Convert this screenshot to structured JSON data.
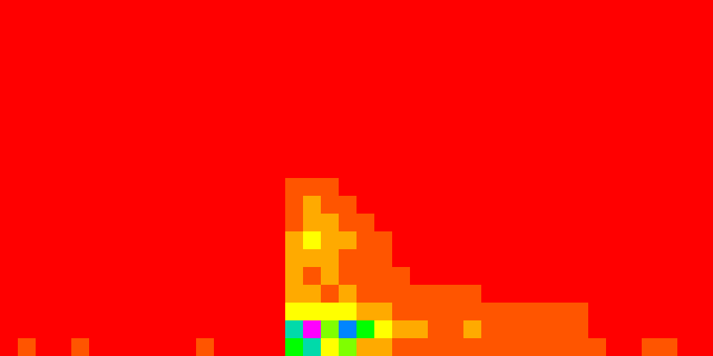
{
  "chart_data": {
    "type": "heatmap",
    "tick_labels": false,
    "grid": false,
    "xlim": [
      0,
      40
    ],
    "ylim": [
      0,
      20
    ],
    "color_range": [
      0,
      10
    ],
    "cells": [
      [
        0,
        0,
        0,
        0,
        0,
        0,
        0,
        0,
        0,
        0,
        0,
        0,
        0,
        0,
        0,
        0,
        0,
        0,
        0,
        0,
        0,
        0,
        0,
        0,
        0,
        0,
        0,
        0,
        0,
        0,
        0,
        0,
        0,
        0,
        0,
        0,
        0,
        0,
        0,
        0
      ],
      [
        0,
        0,
        0,
        0,
        0,
        0,
        0,
        0,
        0,
        0,
        0,
        0,
        0,
        0,
        0,
        0,
        0,
        0,
        0,
        0,
        0,
        0,
        0,
        0,
        0,
        0,
        0,
        0,
        0,
        0,
        0,
        0,
        0,
        0,
        0,
        0,
        0,
        0,
        0,
        0
      ],
      [
        0,
        0,
        0,
        0,
        0,
        0,
        0,
        0,
        0,
        0,
        0,
        0,
        0,
        0,
        0,
        0,
        0,
        0,
        0,
        0,
        0,
        0,
        0,
        0,
        0,
        0,
        0,
        0,
        0,
        0,
        0,
        0,
        0,
        0,
        0,
        0,
        0,
        0,
        0,
        0
      ],
      [
        0,
        0,
        0,
        0,
        0,
        0,
        0,
        0,
        0,
        0,
        0,
        0,
        0,
        0,
        0,
        0,
        0,
        0,
        0,
        0,
        0,
        0,
        0,
        0,
        0,
        0,
        0,
        0,
        0,
        0,
        0,
        0,
        0,
        0,
        0,
        0,
        0,
        0,
        0,
        0
      ],
      [
        0,
        0,
        0,
        0,
        0,
        0,
        0,
        0,
        0,
        0,
        0,
        0,
        0,
        0,
        0,
        0,
        0,
        0,
        0,
        0,
        0,
        0,
        0,
        0,
        0,
        0,
        0,
        0,
        0,
        0,
        0,
        0,
        0,
        0,
        0,
        0,
        0,
        0,
        0,
        0
      ],
      [
        0,
        0,
        0,
        0,
        0,
        0,
        0,
        0,
        0,
        0,
        0,
        0,
        0,
        0,
        0,
        0,
        0,
        0,
        0,
        0,
        0,
        0,
        0,
        0,
        0,
        0,
        0,
        0,
        0,
        0,
        0,
        0,
        0,
        0,
        0,
        0,
        0,
        0,
        0,
        0
      ],
      [
        0,
        0,
        0,
        0,
        0,
        0,
        0,
        0,
        0,
        0,
        0,
        0,
        0,
        0,
        0,
        0,
        0,
        0,
        0,
        0,
        0,
        0,
        0,
        0,
        0,
        0,
        0,
        0,
        0,
        0,
        0,
        0,
        0,
        0,
        0,
        0,
        0,
        0,
        0,
        0
      ],
      [
        0,
        0,
        0,
        0,
        0,
        0,
        0,
        0,
        0,
        0,
        0,
        0,
        0,
        0,
        0,
        0,
        0,
        0,
        0,
        0,
        0,
        0,
        0,
        0,
        0,
        0,
        0,
        0,
        0,
        0,
        0,
        0,
        0,
        0,
        0,
        0,
        0,
        0,
        0,
        0
      ],
      [
        0,
        0,
        0,
        0,
        0,
        0,
        0,
        0,
        0,
        0,
        0,
        0,
        0,
        0,
        0,
        0,
        0,
        0,
        0,
        0,
        0,
        0,
        0,
        0,
        0,
        0,
        0,
        0,
        0,
        0,
        0,
        0,
        0,
        0,
        0,
        0,
        0,
        0,
        0,
        0
      ],
      [
        0,
        0,
        0,
        0,
        0,
        0,
        0,
        0,
        0,
        0,
        0,
        0,
        0,
        0,
        0,
        0,
        0,
        0,
        0,
        0,
        0,
        0,
        0,
        0,
        0,
        0,
        0,
        0,
        0,
        0,
        0,
        0,
        0,
        0,
        0,
        0,
        0,
        0,
        0,
        0
      ],
      [
        0,
        0,
        0,
        0,
        0,
        0,
        0,
        0,
        0,
        0,
        0,
        0,
        0,
        0,
        0,
        0,
        1,
        1,
        1,
        0,
        0,
        0,
        0,
        0,
        0,
        0,
        0,
        0,
        0,
        0,
        0,
        0,
        0,
        0,
        0,
        0,
        0,
        0,
        0,
        0
      ],
      [
        0,
        0,
        0,
        0,
        0,
        0,
        0,
        0,
        0,
        0,
        0,
        0,
        0,
        0,
        0,
        0,
        1,
        2,
        1,
        1,
        0,
        0,
        0,
        0,
        0,
        0,
        0,
        0,
        0,
        0,
        0,
        0,
        0,
        0,
        0,
        0,
        0,
        0,
        0,
        0
      ],
      [
        0,
        0,
        0,
        0,
        0,
        0,
        0,
        0,
        0,
        0,
        0,
        0,
        0,
        0,
        0,
        0,
        1,
        2,
        2,
        1,
        1,
        0,
        0,
        0,
        0,
        0,
        0,
        0,
        0,
        0,
        0,
        0,
        0,
        0,
        0,
        0,
        0,
        0,
        0,
        0
      ],
      [
        0,
        0,
        0,
        0,
        0,
        0,
        0,
        0,
        0,
        0,
        0,
        0,
        0,
        0,
        0,
        0,
        2,
        3,
        2,
        2,
        1,
        1,
        0,
        0,
        0,
        0,
        0,
        0,
        0,
        0,
        0,
        0,
        0,
        0,
        0,
        0,
        0,
        0,
        0,
        0
      ],
      [
        0,
        0,
        0,
        0,
        0,
        0,
        0,
        0,
        0,
        0,
        0,
        0,
        0,
        0,
        0,
        0,
        2,
        2,
        2,
        1,
        1,
        1,
        0,
        0,
        0,
        0,
        0,
        0,
        0,
        0,
        0,
        0,
        0,
        0,
        0,
        0,
        0,
        0,
        0,
        0
      ],
      [
        0,
        0,
        0,
        0,
        0,
        0,
        0,
        0,
        0,
        0,
        0,
        0,
        0,
        0,
        0,
        0,
        2,
        1,
        2,
        1,
        1,
        1,
        1,
        0,
        0,
        0,
        0,
        0,
        0,
        0,
        0,
        0,
        0,
        0,
        0,
        0,
        0,
        0,
        0,
        0
      ],
      [
        0,
        0,
        0,
        0,
        0,
        0,
        0,
        0,
        0,
        0,
        0,
        0,
        0,
        0,
        0,
        0,
        2,
        2,
        1,
        2,
        1,
        1,
        1,
        1,
        1,
        1,
        1,
        0,
        0,
        0,
        0,
        0,
        0,
        0,
        0,
        0,
        0,
        0,
        0,
        0
      ],
      [
        0,
        0,
        0,
        0,
        0,
        0,
        0,
        0,
        0,
        0,
        0,
        0,
        0,
        0,
        0,
        0,
        3,
        3,
        3,
        3,
        2,
        2,
        1,
        1,
        1,
        1,
        1,
        1,
        1,
        1,
        1,
        1,
        1,
        0,
        0,
        0,
        0,
        0,
        0,
        0
      ],
      [
        0,
        0,
        0,
        0,
        0,
        0,
        0,
        0,
        0,
        0,
        0,
        0,
        0,
        0,
        0,
        0,
        6,
        10,
        4,
        7,
        5,
        3,
        2,
        2,
        1,
        1,
        2,
        1,
        1,
        1,
        1,
        1,
        1,
        0,
        0,
        0,
        0,
        0,
        0,
        0
      ],
      [
        0,
        1,
        0,
        0,
        1,
        0,
        0,
        0,
        0,
        0,
        0,
        1,
        0,
        0,
        0,
        0,
        5,
        6,
        3,
        4,
        2,
        2,
        1,
        1,
        1,
        1,
        1,
        1,
        1,
        1,
        1,
        1,
        1,
        1,
        0,
        0,
        1,
        1,
        0,
        0
      ]
    ]
  }
}
